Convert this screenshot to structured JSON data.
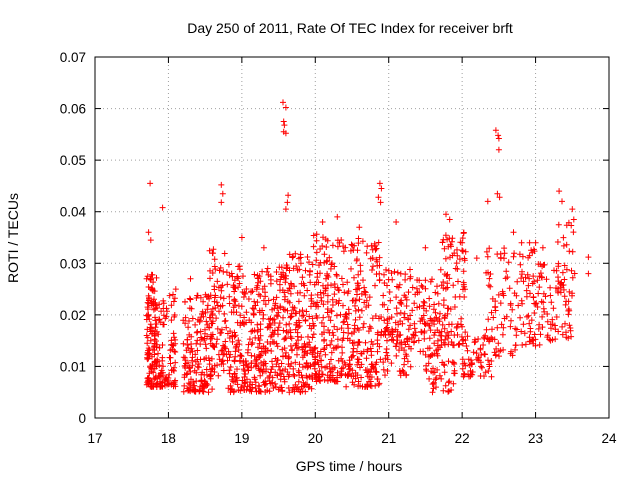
{
  "chart_data": {
    "type": "scatter",
    "title": "Day 250 of 2011, Rate Of TEC Index for receiver brft",
    "xlabel": "GPS time / hours",
    "ylabel": "ROTI / TECUs",
    "xlim": [
      17,
      24
    ],
    "ylim": [
      0,
      0.07
    ],
    "x_ticks": [
      "17",
      "18",
      "19",
      "20",
      "21",
      "22",
      "23",
      "24"
    ],
    "y_ticks": [
      "0",
      "0.01",
      "0.02",
      "0.03",
      "0.04",
      "0.05",
      "0.06",
      "0.07"
    ],
    "grid": true,
    "marker": "plus",
    "color": "#ff0000",
    "series": [
      {
        "points": [
          [
            17.75,
            0.0455
          ],
          [
            17.73,
            0.036
          ],
          [
            17.76,
            0.0345
          ],
          [
            17.92,
            0.0408
          ],
          [
            18.72,
            0.0452
          ],
          [
            18.74,
            0.0435
          ],
          [
            18.72,
            0.0418
          ],
          [
            19.56,
            0.0612
          ],
          [
            19.6,
            0.0602
          ],
          [
            19.57,
            0.0575
          ],
          [
            19.58,
            0.0568
          ],
          [
            19.6,
            0.0552
          ],
          [
            19.57,
            0.0555
          ],
          [
            19.63,
            0.0432
          ],
          [
            19.62,
            0.0418
          ],
          [
            19.6,
            0.0405
          ],
          [
            20.88,
            0.0455
          ],
          [
            20.9,
            0.0445
          ],
          [
            20.86,
            0.0428
          ],
          [
            20.89,
            0.0418
          ],
          [
            21.78,
            0.0395
          ],
          [
            21.83,
            0.0385
          ],
          [
            22.46,
            0.0558
          ],
          [
            22.49,
            0.0548
          ],
          [
            22.5,
            0.0542
          ],
          [
            22.5,
            0.052
          ],
          [
            22.48,
            0.0435
          ],
          [
            22.51,
            0.0428
          ],
          [
            22.35,
            0.042
          ],
          [
            23.32,
            0.044
          ],
          [
            23.36,
            0.042
          ],
          [
            23.5,
            0.0405
          ],
          [
            23.52,
            0.0385
          ],
          [
            23.72,
            0.0312
          ],
          [
            23.72,
            0.028
          ],
          [
            18.1,
            0.025
          ],
          [
            18.3,
            0.027
          ],
          [
            18.6,
            0.032
          ],
          [
            19.0,
            0.035
          ],
          [
            19.3,
            0.033
          ],
          [
            20.1,
            0.038
          ],
          [
            20.3,
            0.039
          ],
          [
            20.6,
            0.037
          ],
          [
            21.1,
            0.038
          ],
          [
            21.5,
            0.033
          ],
          [
            22.0,
            0.034
          ],
          [
            22.2,
            0.031
          ],
          [
            22.7,
            0.036
          ],
          [
            23.0,
            0.034
          ],
          [
            23.1,
            0.033
          ]
        ]
      }
    ]
  }
}
